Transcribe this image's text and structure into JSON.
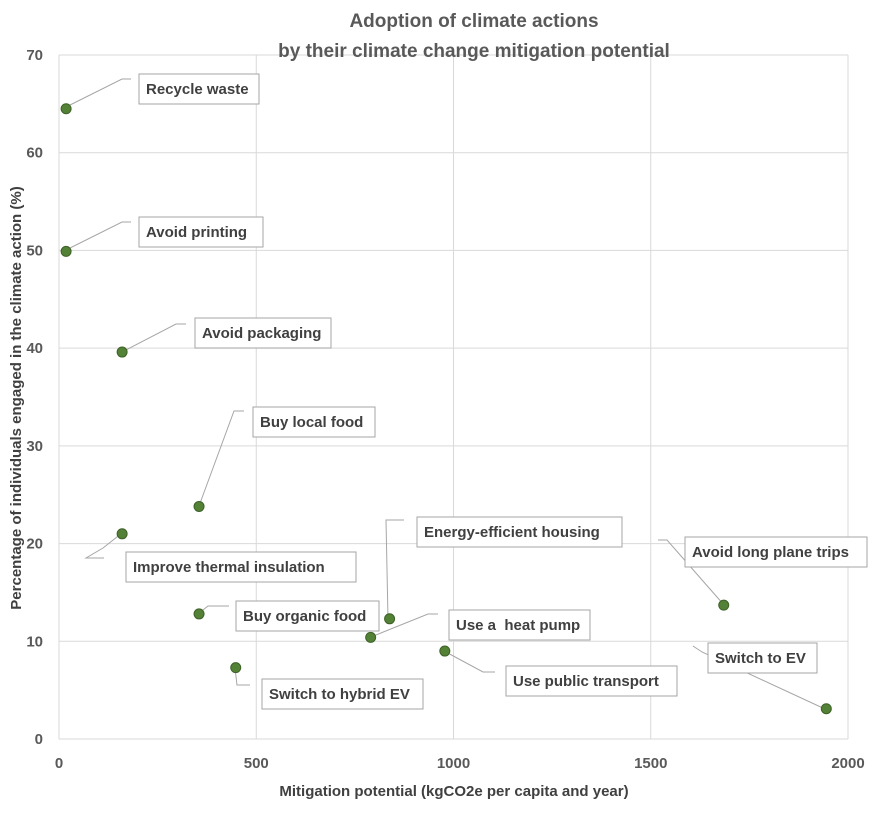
{
  "chart_data": {
    "type": "scatter",
    "title": [
      "Adoption of climate actions",
      "by their climate change mitigation potential"
    ],
    "xlabel": "Mitigation potential (kgCO2e per capita and year)",
    "ylabel": "Percentage of individuals engaged in the climate action (%)",
    "xlim": [
      0,
      2000
    ],
    "ylim": [
      0,
      70
    ],
    "xticks": [
      0,
      500,
      1000,
      1500,
      2000
    ],
    "yticks": [
      0,
      10,
      20,
      30,
      40,
      50,
      60,
      70
    ],
    "grid": true,
    "marker_color": "#538135",
    "points": [
      {
        "label": "Recycle waste",
        "x": 18,
        "y": 64.5
      },
      {
        "label": "Avoid printing",
        "x": 18,
        "y": 49.9
      },
      {
        "label": "Avoid packaging",
        "x": 160,
        "y": 39.6
      },
      {
        "label": "Buy local food",
        "x": 355,
        "y": 23.8
      },
      {
        "label": "Improve thermal insulation",
        "x": 160,
        "y": 21.0
      },
      {
        "label": "Buy organic food",
        "x": 355,
        "y": 12.8
      },
      {
        "label": "Switch to hybrid EV",
        "x": 448,
        "y": 7.3
      },
      {
        "label": "Energy-efficient housing",
        "x": 838,
        "y": 12.3
      },
      {
        "label": "Use a  heat pump",
        "x": 790,
        "y": 10.4
      },
      {
        "label": "Use public transport",
        "x": 978,
        "y": 9.0
      },
      {
        "label": "Avoid long plane trips",
        "x": 1685,
        "y": 13.7
      },
      {
        "label": "Switch to EV",
        "x": 1945,
        "y": 3.1
      }
    ]
  }
}
